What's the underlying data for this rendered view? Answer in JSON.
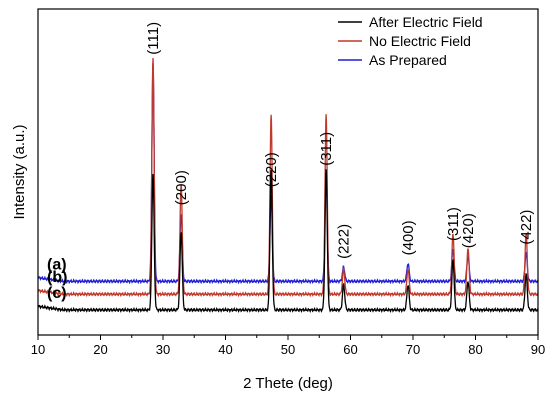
{
  "chart_data": {
    "type": "line",
    "title": "",
    "xlabel": "2 Thete (deg)",
    "ylabel": "Intensity (a.u.)",
    "xlim": [
      10,
      90
    ],
    "xticks": [
      10,
      20,
      30,
      40,
      50,
      60,
      70,
      80,
      90
    ],
    "y_tick_labels": false,
    "grid": false,
    "legend_position": "top-right",
    "legend": [
      {
        "label": "After Electric Field",
        "color": "#000000"
      },
      {
        "label": "No Electric Field",
        "color": "#c0392b"
      },
      {
        "label": "As Prepared",
        "color": "#1f1fd6"
      }
    ],
    "series": [
      {
        "name": "As Prepared",
        "curve_label": "(a)",
        "color": "#1f1fd6",
        "baseline": 0.4,
        "peaks": [
          {
            "x": 28.4,
            "height": 3.05
          },
          {
            "x": 32.9,
            "height": 0.95
          },
          {
            "x": 47.3,
            "height": 1.2
          },
          {
            "x": 56.1,
            "height": 1.5
          },
          {
            "x": 58.9,
            "height": 0.2
          },
          {
            "x": 69.2,
            "height": 0.25
          },
          {
            "x": 76.4,
            "height": 0.45
          },
          {
            "x": 78.8,
            "height": 0.35
          },
          {
            "x": 88.1,
            "height": 0.4
          }
        ]
      },
      {
        "name": "No Electric Field",
        "curve_label": "(b)",
        "color": "#c0392b",
        "baseline": 0.22,
        "peaks": [
          {
            "x": 28.4,
            "height": 3.3
          },
          {
            "x": 32.9,
            "height": 1.55
          },
          {
            "x": 47.3,
            "height": 2.5
          },
          {
            "x": 56.1,
            "height": 2.5
          },
          {
            "x": 58.9,
            "height": 0.35
          },
          {
            "x": 69.2,
            "height": 0.35
          },
          {
            "x": 76.4,
            "height": 0.85
          },
          {
            "x": 78.8,
            "height": 0.65
          },
          {
            "x": 88.1,
            "height": 0.85
          }
        ]
      },
      {
        "name": "After Electric Field",
        "curve_label": "(c)",
        "color": "#000000",
        "baseline": 0.0,
        "peaks": [
          {
            "x": 28.4,
            "height": 1.9
          },
          {
            "x": 32.9,
            "height": 1.1
          },
          {
            "x": 47.3,
            "height": 1.95
          },
          {
            "x": 56.1,
            "height": 1.95
          },
          {
            "x": 58.9,
            "height": 0.35
          },
          {
            "x": 69.2,
            "height": 0.35
          },
          {
            "x": 76.4,
            "height": 0.7
          },
          {
            "x": 78.8,
            "height": 0.4
          },
          {
            "x": 88.1,
            "height": 0.5
          }
        ]
      }
    ],
    "peak_annotations": [
      {
        "x": 28.4,
        "label": "(111)"
      },
      {
        "x": 32.9,
        "label": "(200)"
      },
      {
        "x": 47.3,
        "label": "(220)"
      },
      {
        "x": 56.1,
        "label": "(311)"
      },
      {
        "x": 58.9,
        "label": "(222)"
      },
      {
        "x": 69.2,
        "label": "(400)"
      },
      {
        "x": 76.4,
        "label": "(311)"
      },
      {
        "x": 78.8,
        "label": "(420)"
      },
      {
        "x": 88.1,
        "label": "(422)"
      }
    ]
  }
}
